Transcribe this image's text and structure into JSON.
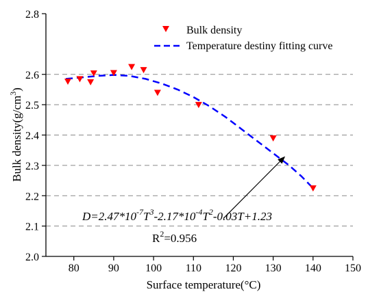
{
  "chart_data": {
    "type": "scatter",
    "xlabel": "Surface temperature(°C)",
    "ylabel_main": "Bulk density(g/cm",
    "ylabel_sup": "3",
    "ylabel_tail": ")",
    "xlim": [
      73,
      150
    ],
    "ylim": [
      2.0,
      2.8
    ],
    "xticks": [
      80,
      90,
      100,
      110,
      120,
      130,
      140,
      150
    ],
    "yticks": [
      2.0,
      2.1,
      2.2,
      2.3,
      2.4,
      2.5,
      2.6,
      2.8
    ],
    "grid_lines_y": [
      2.1,
      2.2,
      2.3,
      2.4,
      2.5,
      2.6
    ],
    "grid": "dashed horizontal",
    "legend_position": "top-right",
    "series": [
      {
        "name": "Bulk density",
        "kind": "scatter",
        "marker": "triangle-down",
        "color": "#ff0000",
        "points": [
          {
            "x": 78.5,
            "y": 2.577
          },
          {
            "x": 81.5,
            "y": 2.585
          },
          {
            "x": 84.2,
            "y": 2.575
          },
          {
            "x": 85.0,
            "y": 2.604
          },
          {
            "x": 90.0,
            "y": 2.605
          },
          {
            "x": 94.5,
            "y": 2.625
          },
          {
            "x": 97.5,
            "y": 2.615
          },
          {
            "x": 101.0,
            "y": 2.54
          },
          {
            "x": 111.3,
            "y": 2.5
          },
          {
            "x": 130.0,
            "y": 2.39
          },
          {
            "x": 140.0,
            "y": 2.225
          }
        ]
      },
      {
        "name": "Temperature destiny fitting curve",
        "kind": "line",
        "style": "dashed",
        "color": "#0000ff",
        "points": [
          {
            "x": 78.0,
            "y": 2.585
          },
          {
            "x": 82.0,
            "y": 2.59
          },
          {
            "x": 86.0,
            "y": 2.595
          },
          {
            "x": 90.0,
            "y": 2.598
          },
          {
            "x": 94.0,
            "y": 2.595
          },
          {
            "x": 98.0,
            "y": 2.585
          },
          {
            "x": 102.0,
            "y": 2.57
          },
          {
            "x": 106.0,
            "y": 2.55
          },
          {
            "x": 110.0,
            "y": 2.525
          },
          {
            "x": 114.0,
            "y": 2.495
          },
          {
            "x": 118.0,
            "y": 2.46
          },
          {
            "x": 122.0,
            "y": 2.42
          },
          {
            "x": 126.0,
            "y": 2.38
          },
          {
            "x": 130.0,
            "y": 2.34
          },
          {
            "x": 134.0,
            "y": 2.3
          },
          {
            "x": 137.0,
            "y": 2.265
          },
          {
            "x": 140.0,
            "y": 2.225
          }
        ]
      }
    ],
    "annotation": {
      "equation_parts": [
        "D=2.47*10",
        "-7",
        "T",
        "3",
        "-2.17*10",
        "-4",
        "T",
        "2",
        "-0.03T+1.23"
      ],
      "r2_label": "R",
      "r2_sup": "2",
      "r2_value": "=0.956",
      "arrow_from": {
        "x": 117.5,
        "y": 2.125
      },
      "arrow_to": {
        "x": 133.0,
        "y": 2.33
      }
    }
  }
}
